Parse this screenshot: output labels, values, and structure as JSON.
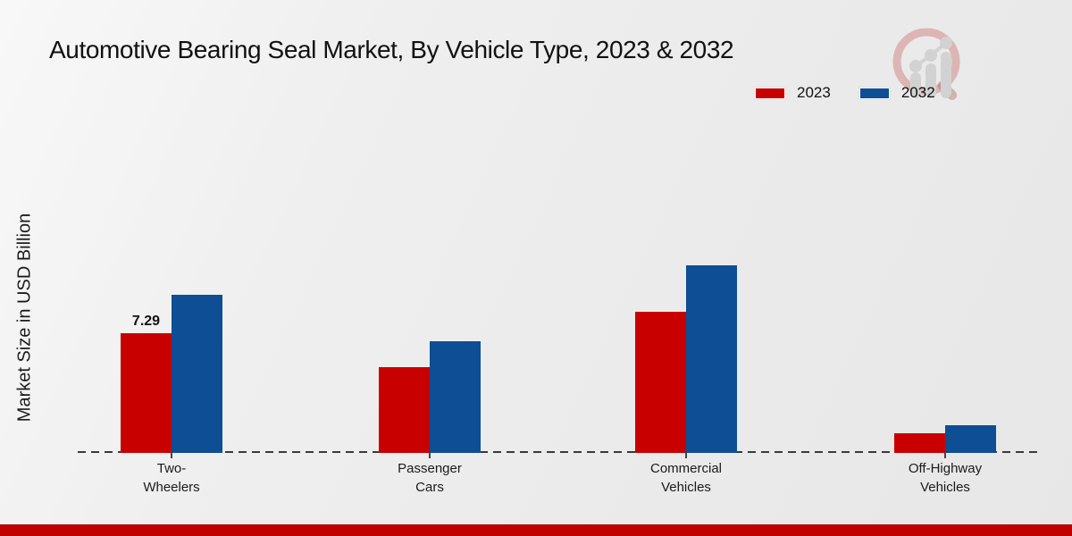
{
  "title": "Automotive Bearing Seal Market, By Vehicle Type, 2023 & 2032",
  "y_axis_label": "Market Size in USD Billion",
  "legend": {
    "items": [
      {
        "label": "2023",
        "color": "#c80000"
      },
      {
        "label": "2032",
        "color": "#0d4e94"
      }
    ]
  },
  "chart_data": {
    "type": "bar",
    "title": "Automotive Bearing Seal Market, By Vehicle Type, 2023 & 2032",
    "xlabel": "",
    "ylabel": "Market Size in USD Billion",
    "categories": [
      "Two-\nWheelers",
      "Passenger\nCars",
      "Commercial\nVehicles",
      "Off-Highway\nVehicles"
    ],
    "series": [
      {
        "name": "2023",
        "color": "#c80000",
        "values": [
          7.29,
          5.2,
          8.6,
          1.2
        ]
      },
      {
        "name": "2032",
        "color": "#0d4e94",
        "values": [
          9.6,
          6.8,
          11.4,
          1.7
        ]
      }
    ],
    "bar_labels": [
      {
        "series": "2023",
        "category_index": 0,
        "text": "7.29"
      }
    ],
    "ylim": [
      0,
      12
    ],
    "grid": false,
    "axis_ticks_visible": false,
    "baseline_style": "dashed",
    "legend_position": "top-right"
  },
  "colors": {
    "accent_red": "#c80000",
    "accent_blue": "#0d4e94",
    "footer_stripe": "#c00000",
    "background": "#ededed",
    "watermark_pink": "rgba(192,60,60,0.30)",
    "watermark_gray": "#d2d2d2"
  }
}
